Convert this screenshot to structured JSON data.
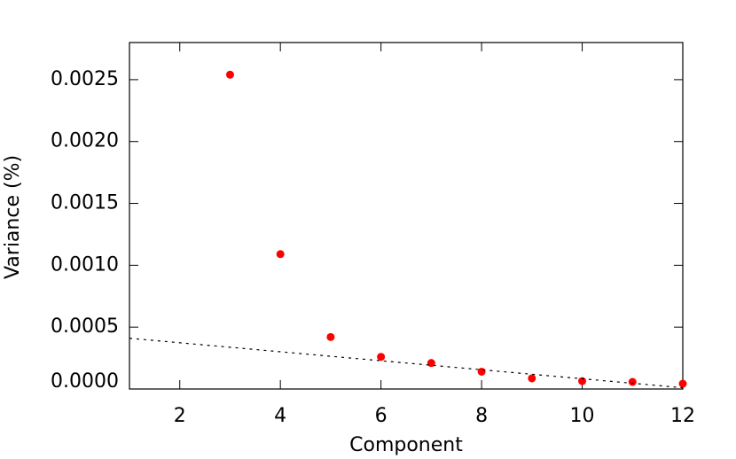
{
  "chart_data": {
    "type": "scatter",
    "x_label": "Component",
    "y_label": "Variance (%)",
    "xlim": [
      1,
      12
    ],
    "ylim": [
      0,
      0.0028
    ],
    "xticks": [
      2,
      4,
      6,
      8,
      10,
      12
    ],
    "yticks": [
      {
        "value": 0,
        "label": "0.0000"
      },
      {
        "value": 0.0005,
        "label": "0.0005"
      },
      {
        "value": 0.001,
        "label": "0.0010"
      },
      {
        "value": 0.0015,
        "label": "0.0015"
      },
      {
        "value": 0.002,
        "label": "0.0020"
      },
      {
        "value": 0.0025,
        "label": "0.0025"
      }
    ],
    "series": [
      {
        "style": "points",
        "color": "#ff0000",
        "x": [
          3,
          4,
          5,
          6,
          7,
          8,
          9,
          10,
          11,
          12
        ],
        "values": [
          0.00254,
          0.00109,
          0.00042,
          0.00026,
          0.00021,
          0.00014,
          8.6e-05,
          6.4e-05,
          5.7e-05,
          4.3e-05
        ]
      },
      {
        "style": "dashed",
        "color": "#000000",
        "x": [
          1,
          12
        ],
        "values": [
          0.00041,
          1e-05
        ]
      }
    ]
  }
}
